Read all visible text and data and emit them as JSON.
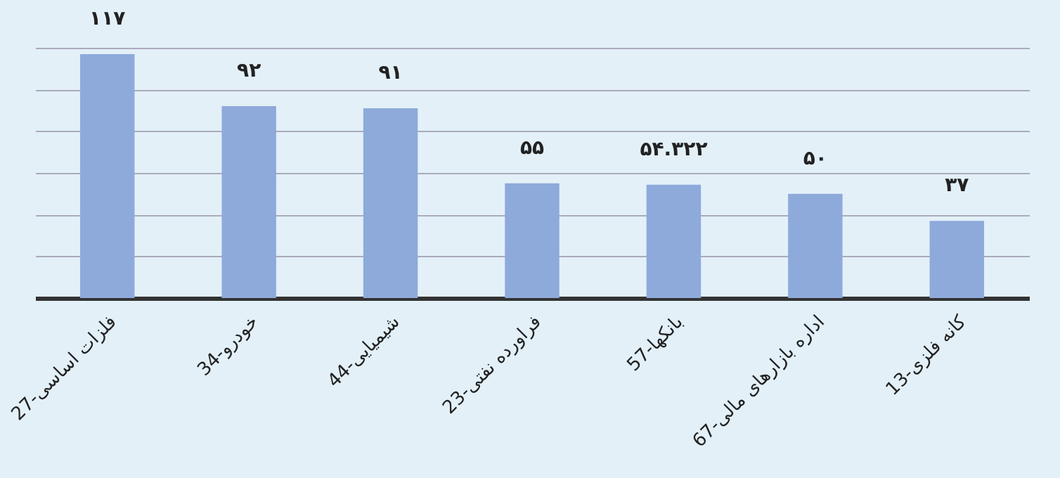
{
  "chart_data": {
    "type": "bar",
    "categories": [
      "27-فلزات اساسی",
      "34-خودرو",
      "44-شیمیایی",
      "23-فراورده نفتی",
      "57-بانکها",
      "67-اداره بازارهای مالی",
      "13-کانه فلزی"
    ],
    "values": [
      117,
      92,
      91,
      55,
      54.322,
      50,
      37
    ],
    "value_labels": [
      "۱۱۷",
      "۹۲",
      "۹۱",
      "۵۵",
      "۵۴.۳۲۲",
      "۵۰",
      "۳۷"
    ],
    "color": "#8eaadb",
    "grid": "y",
    "tick_labels": "x"
  }
}
